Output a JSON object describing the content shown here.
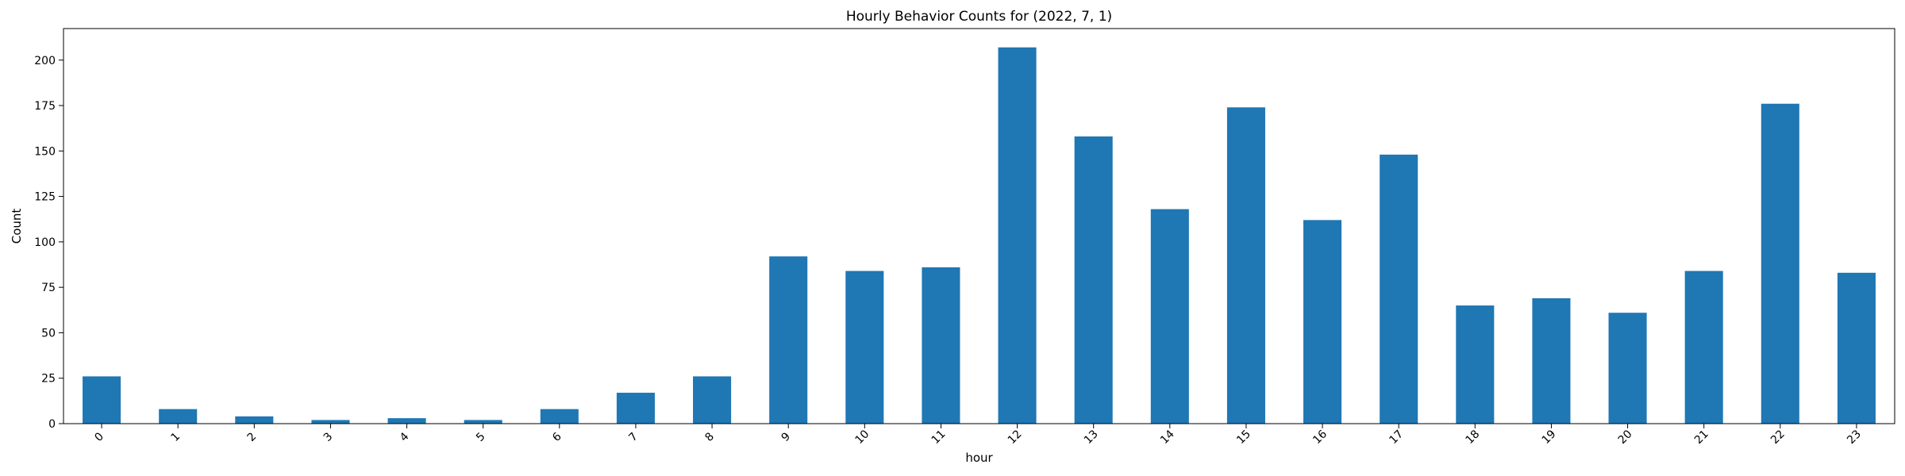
{
  "chart_data": {
    "type": "bar",
    "title": "Hourly Behavior Counts for (2022, 7, 1)",
    "xlabel": "hour",
    "ylabel": "Count",
    "categories": [
      "0",
      "1",
      "2",
      "3",
      "4",
      "5",
      "6",
      "7",
      "8",
      "9",
      "10",
      "11",
      "12",
      "13",
      "14",
      "15",
      "16",
      "17",
      "18",
      "19",
      "20",
      "21",
      "22",
      "23"
    ],
    "values": [
      26,
      8,
      4,
      2,
      3,
      2,
      8,
      17,
      26,
      92,
      84,
      86,
      207,
      158,
      118,
      174,
      112,
      148,
      65,
      69,
      61,
      84,
      176,
      83
    ],
    "ylim": [
      0,
      217.35
    ],
    "yticks": [
      0,
      25,
      50,
      75,
      100,
      125,
      150,
      175,
      200
    ],
    "yticklabels": [
      "0",
      "25",
      "50",
      "75",
      "100",
      "125",
      "150",
      "175",
      "200"
    ],
    "grid": false,
    "legend": "none",
    "colors": {
      "bar": "#1f77b4",
      "axis": "#000000",
      "background": "#ffffff"
    }
  }
}
